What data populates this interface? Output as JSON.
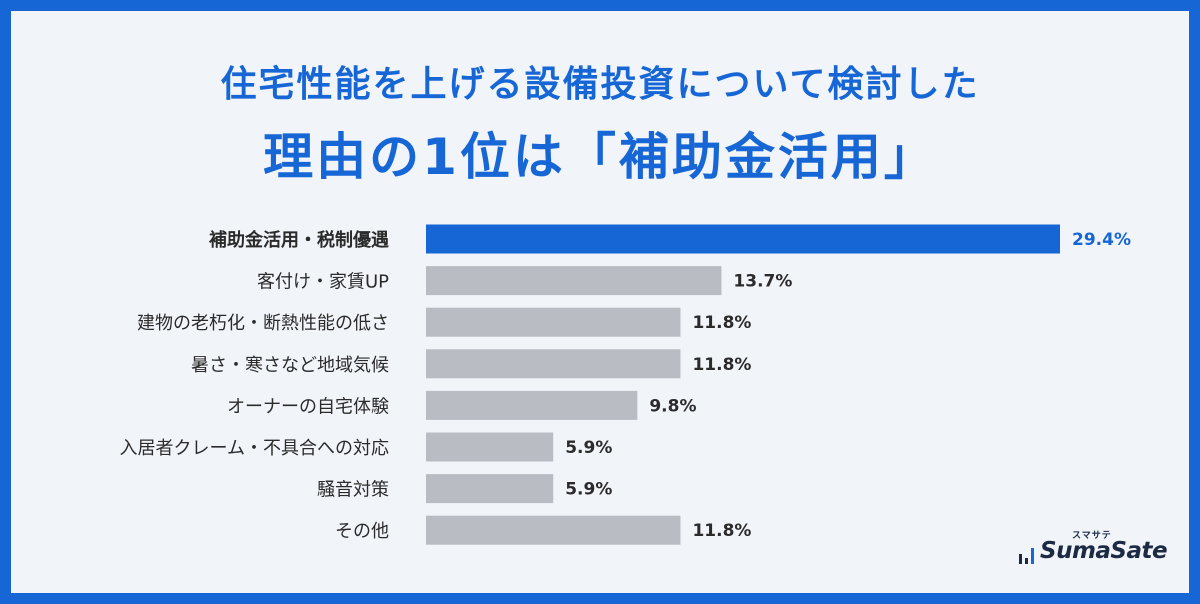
{
  "header": {
    "title_line1": "住宅性能を上げる設備投資について検討した",
    "title_line2": "理由の1位は「補助金活用」"
  },
  "chart_data": {
    "type": "bar",
    "orientation": "horizontal",
    "categories": [
      "補助金活用・税制優遇",
      "客付け・家賃UP",
      "建物の老朽化・断熱性能の低さ",
      "暑さ・寒さなど地域気候",
      "オーナーの自宅体験",
      "入居者クレーム・不具合への対応",
      "騒音対策",
      "その他"
    ],
    "values": [
      29.4,
      13.7,
      11.8,
      11.8,
      9.8,
      5.9,
      5.9,
      11.8
    ],
    "value_labels": [
      "29.4%",
      "13.7%",
      "11.8%",
      "11.8%",
      "9.8%",
      "5.9%",
      "5.9%",
      "11.8%"
    ],
    "highlight_index": 0,
    "colors": {
      "highlight": "#1766d6",
      "bar": "#b9bcc2",
      "label": "#2b2b2b"
    }
  },
  "logo": {
    "kana": "スマサテ",
    "text": "SumaSate"
  }
}
